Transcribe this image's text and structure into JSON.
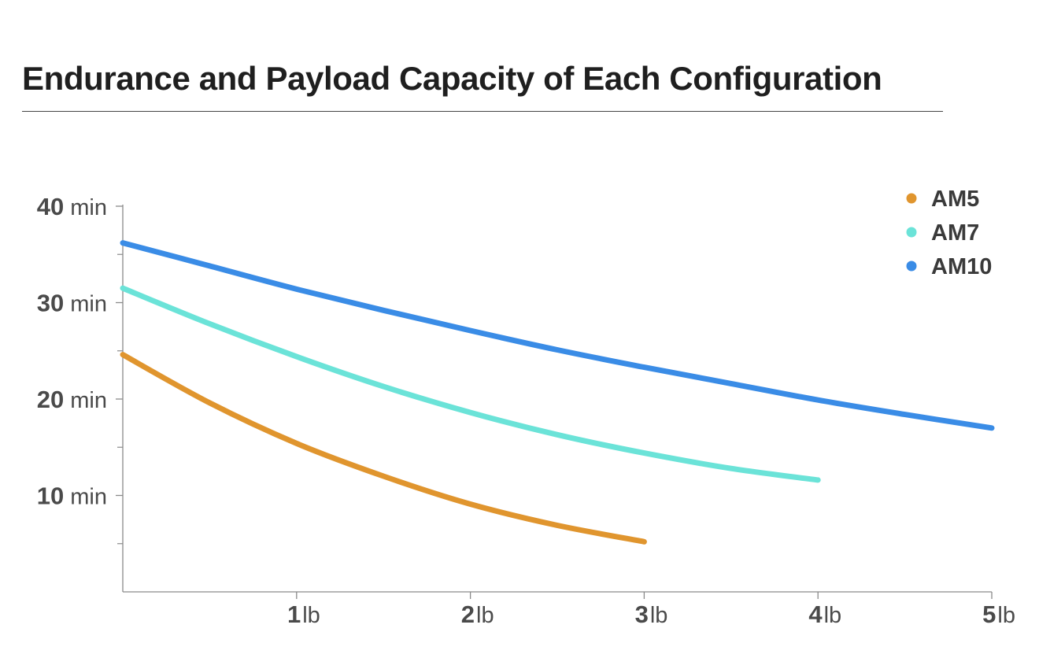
{
  "chart_data": {
    "type": "line",
    "title": "Endurance and Payload Capacity of Each Configuration",
    "xlabel": "",
    "ylabel": "",
    "xlim": [
      0,
      5
    ],
    "ylim": [
      0,
      40
    ],
    "x_ticks": [
      {
        "value": 1,
        "num": "1",
        "unit": "lb"
      },
      {
        "value": 2,
        "num": "2",
        "unit": "lb"
      },
      {
        "value": 3,
        "num": "3",
        "unit": "lb"
      },
      {
        "value": 4,
        "num": "4",
        "unit": "lb"
      },
      {
        "value": 5,
        "num": "5",
        "unit": "lb"
      }
    ],
    "y_ticks": [
      {
        "value": 10,
        "num": "10",
        "unit": "min"
      },
      {
        "value": 20,
        "num": "20",
        "unit": "min"
      },
      {
        "value": 30,
        "num": "30",
        "unit": "min"
      },
      {
        "value": 40,
        "num": "40",
        "unit": "min"
      }
    ],
    "y_minor_ticks": [
      5,
      15,
      25,
      35
    ],
    "grid": false,
    "legend_position": "top-right",
    "series": [
      {
        "name": "AM5",
        "color": "#E0952E",
        "points": [
          [
            0,
            24.6
          ],
          [
            0.5,
            19.6
          ],
          [
            1,
            15.4
          ],
          [
            1.5,
            12.0
          ],
          [
            2,
            9.1
          ],
          [
            2.5,
            6.9
          ],
          [
            3,
            5.2
          ]
        ]
      },
      {
        "name": "AM7",
        "color": "#6BE3D8",
        "points": [
          [
            0,
            31.5
          ],
          [
            0.5,
            27.8
          ],
          [
            1,
            24.4
          ],
          [
            1.5,
            21.3
          ],
          [
            2,
            18.6
          ],
          [
            2.5,
            16.3
          ],
          [
            3,
            14.4
          ],
          [
            3.5,
            12.8
          ],
          [
            4,
            11.6
          ]
        ]
      },
      {
        "name": "AM10",
        "color": "#3A8CE6",
        "points": [
          [
            0,
            36.2
          ],
          [
            0.5,
            33.8
          ],
          [
            1,
            31.4
          ],
          [
            1.5,
            29.2
          ],
          [
            2,
            27.1
          ],
          [
            2.5,
            25.1
          ],
          [
            3,
            23.3
          ],
          [
            3.5,
            21.6
          ],
          [
            4,
            19.9
          ],
          [
            4.5,
            18.4
          ],
          [
            5,
            17.0
          ]
        ]
      }
    ]
  }
}
